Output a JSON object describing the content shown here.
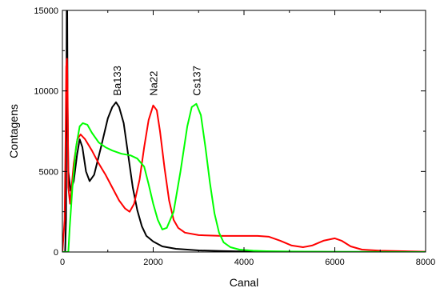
{
  "chart_data": {
    "type": "line",
    "xlabel": "Canal",
    "ylabel": "Contagens",
    "xlim": [
      0,
      8000
    ],
    "ylim": [
      0,
      15000
    ],
    "x_ticks": [
      "0",
      "2000",
      "4000",
      "6000",
      "8000"
    ],
    "y_ticks": [
      "0",
      "5000",
      "10000",
      "15000"
    ],
    "grid": false,
    "legend": "none",
    "series": [
      {
        "name": "",
        "color": "#000000",
        "points": [
          [
            0,
            0
          ],
          [
            60,
            0
          ],
          [
            80,
            2000
          ],
          [
            95,
            15000
          ],
          [
            105,
            15000
          ],
          [
            115,
            9000
          ],
          [
            130,
            5000
          ],
          [
            180,
            3800
          ],
          [
            250,
            4400
          ],
          [
            320,
            6000
          ],
          [
            380,
            7000
          ],
          [
            440,
            6500
          ],
          [
            520,
            5000
          ],
          [
            600,
            4400
          ],
          [
            700,
            4800
          ],
          [
            850,
            6500
          ],
          [
            1000,
            8300
          ],
          [
            1100,
            9000
          ],
          [
            1180,
            9300
          ],
          [
            1250,
            9000
          ],
          [
            1350,
            8000
          ],
          [
            1450,
            6000
          ],
          [
            1550,
            4000
          ],
          [
            1650,
            2600
          ],
          [
            1750,
            1600
          ],
          [
            1850,
            1000
          ],
          [
            2000,
            650
          ],
          [
            2200,
            350
          ],
          [
            2500,
            200
          ],
          [
            3000,
            100
          ],
          [
            3500,
            60
          ],
          [
            4000,
            30
          ],
          [
            5000,
            15
          ],
          [
            6000,
            5
          ],
          [
            8000,
            0
          ]
        ]
      },
      {
        "name": "",
        "color": "#ff0000",
        "points": [
          [
            0,
            0
          ],
          [
            50,
            2000
          ],
          [
            70,
            7000
          ],
          [
            85,
            11500
          ],
          [
            100,
            12000
          ],
          [
            115,
            10000
          ],
          [
            130,
            4000
          ],
          [
            170,
            3000
          ],
          [
            250,
            5500
          ],
          [
            330,
            7000
          ],
          [
            400,
            7300
          ],
          [
            500,
            7000
          ],
          [
            650,
            6300
          ],
          [
            800,
            5500
          ],
          [
            950,
            4800
          ],
          [
            1100,
            4000
          ],
          [
            1250,
            3200
          ],
          [
            1380,
            2700
          ],
          [
            1480,
            2500
          ],
          [
            1580,
            3000
          ],
          [
            1700,
            4500
          ],
          [
            1800,
            6500
          ],
          [
            1900,
            8200
          ],
          [
            2000,
            9100
          ],
          [
            2080,
            8800
          ],
          [
            2150,
            7500
          ],
          [
            2250,
            5200
          ],
          [
            2350,
            3200
          ],
          [
            2450,
            2000
          ],
          [
            2550,
            1500
          ],
          [
            2700,
            1200
          ],
          [
            3000,
            1050
          ],
          [
            3500,
            1000
          ],
          [
            4000,
            1000
          ],
          [
            4300,
            1000
          ],
          [
            4550,
            950
          ],
          [
            4800,
            700
          ],
          [
            5050,
            400
          ],
          [
            5300,
            300
          ],
          [
            5500,
            400
          ],
          [
            5750,
            700
          ],
          [
            6000,
            850
          ],
          [
            6150,
            700
          ],
          [
            6350,
            350
          ],
          [
            6600,
            150
          ],
          [
            7000,
            80
          ],
          [
            7500,
            50
          ],
          [
            8000,
            20
          ]
        ]
      },
      {
        "name": "",
        "color": "#00ff00",
        "points": [
          [
            0,
            0
          ],
          [
            130,
            0
          ],
          [
            160,
            1500
          ],
          [
            220,
            4000
          ],
          [
            300,
            6500
          ],
          [
            380,
            7800
          ],
          [
            450,
            8000
          ],
          [
            550,
            7900
          ],
          [
            650,
            7400
          ],
          [
            800,
            6800
          ],
          [
            950,
            6500
          ],
          [
            1100,
            6300
          ],
          [
            1300,
            6100
          ],
          [
            1500,
            6000
          ],
          [
            1650,
            5800
          ],
          [
            1800,
            5300
          ],
          [
            1900,
            4200
          ],
          [
            2000,
            3000
          ],
          [
            2100,
            2000
          ],
          [
            2200,
            1400
          ],
          [
            2300,
            1500
          ],
          [
            2450,
            2500
          ],
          [
            2600,
            5000
          ],
          [
            2750,
            7800
          ],
          [
            2850,
            9000
          ],
          [
            2950,
            9200
          ],
          [
            3050,
            8500
          ],
          [
            3150,
            6500
          ],
          [
            3250,
            4300
          ],
          [
            3350,
            2400
          ],
          [
            3450,
            1200
          ],
          [
            3550,
            600
          ],
          [
            3700,
            300
          ],
          [
            3900,
            150
          ],
          [
            4200,
            80
          ],
          [
            4500,
            50
          ],
          [
            5000,
            30
          ],
          [
            6000,
            15
          ],
          [
            7000,
            5
          ],
          [
            8000,
            0
          ]
        ]
      }
    ],
    "annotations": [
      {
        "text": "Ba133",
        "x": 1200,
        "y": 9700
      },
      {
        "text": "Na22",
        "x": 2000,
        "y": 9700
      },
      {
        "text": "Cs137",
        "x": 2950,
        "y": 9700
      }
    ]
  }
}
